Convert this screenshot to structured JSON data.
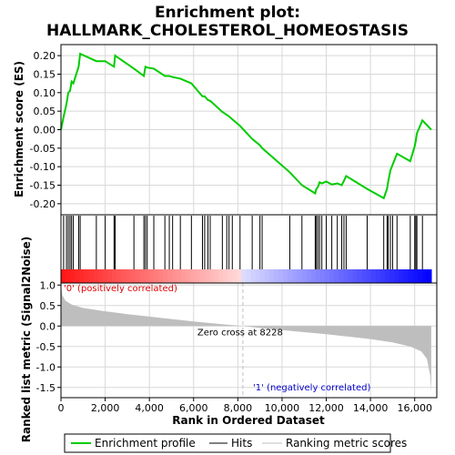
{
  "chart_data": {
    "type": "line",
    "title_line1": "Enrichment plot:",
    "title_line2": "HALLMARK_CHOLESTEROL_HOMEOSTASIS",
    "es_ylabel": "Enrichment score (ES)",
    "metric_ylabel": "Ranked list metric (Signal2Noise)",
    "xlabel": "Rank in Ordered Dataset",
    "xlim": [
      0,
      17000
    ],
    "x_ticks": [
      0,
      2000,
      4000,
      6000,
      8000,
      10000,
      12000,
      14000,
      16000
    ],
    "x_tick_labels": [
      "0",
      "2,000",
      "4,000",
      "6,000",
      "8,000",
      "10,000",
      "12,000",
      "14,000",
      "16,000"
    ],
    "es_ylim": [
      -0.22,
      0.22
    ],
    "es_ticks": [
      -0.2,
      -0.15,
      -0.1,
      -0.05,
      0.0,
      0.05,
      0.1,
      0.15,
      0.2
    ],
    "es_tick_labels": [
      "-0.20",
      "-0.15",
      "-0.10",
      "-0.05",
      "0.00",
      "0.05",
      "0.10",
      "0.15",
      "0.20"
    ],
    "metric_ylim": [
      -1.75,
      1.05
    ],
    "metric_ticks": [
      -1.5,
      -1.0,
      -0.5,
      0.0,
      0.5,
      1.0
    ],
    "metric_tick_labels": [
      "-1.5",
      "-1.0",
      "-0.5",
      "0.0",
      "0.5",
      "1.0"
    ],
    "zero_cross_label": "Zero cross at 8228",
    "zero_cross": 8228,
    "pos_label": "'0' (positively correlated)",
    "neg_label": "'1' (negatively correlated)",
    "legend": [
      "Enrichment profile",
      "Hits",
      "Ranking metric scores"
    ],
    "colors": {
      "es_line": "#00cc00",
      "hit": "#000000",
      "metric_fill": "#bebebe",
      "pos_label": "#e00000",
      "neg_label": "#0000cc",
      "zero_line": "#bebebe",
      "grid": "#d8d8d8"
    },
    "hits": [
      120,
      250,
      330,
      410,
      480,
      560,
      800,
      870,
      1600,
      2000,
      2400,
      2450,
      3300,
      3750,
      3820,
      3900,
      4200,
      4700,
      4900,
      5050,
      5400,
      5900,
      6400,
      6500,
      6650,
      6750,
      7300,
      7500,
      7600,
      7750,
      8100,
      8650,
      9000,
      9100,
      10350,
      10900,
      11500,
      11550,
      11620,
      11700,
      11800,
      12000,
      12250,
      12500,
      12700,
      12800,
      12900,
      13850,
      14600,
      14750,
      14800,
      14900,
      15000,
      15200,
      15800,
      16000,
      16050,
      16100,
      16350
    ],
    "es_x": [
      0,
      120,
      250,
      330,
      410,
      480,
      560,
      800,
      870,
      1600,
      2000,
      2400,
      2450,
      3300,
      3750,
      3820,
      3900,
      4200,
      4700,
      4900,
      5050,
      5400,
      5900,
      6400,
      6500,
      6650,
      6750,
      7300,
      7500,
      7600,
      7750,
      8100,
      8650,
      9000,
      9100,
      10350,
      10900,
      11500,
      11550,
      11620,
      11700,
      11800,
      12000,
      12250,
      12500,
      12700,
      12800,
      12900,
      13850,
      14600,
      14750,
      14800,
      14900,
      15000,
      15200,
      15800,
      16000,
      16050,
      16100,
      16350,
      16750
    ],
    "es_y": [
      0.0,
      0.035,
      0.07,
      0.1,
      0.105,
      0.13,
      0.125,
      0.17,
      0.205,
      0.185,
      0.185,
      0.17,
      0.2,
      0.165,
      0.145,
      0.17,
      0.168,
      0.165,
      0.145,
      0.145,
      0.142,
      0.138,
      0.125,
      0.09,
      0.09,
      0.08,
      0.078,
      0.048,
      0.04,
      0.036,
      0.028,
      0.01,
      -0.025,
      -0.042,
      -0.05,
      -0.115,
      -0.15,
      -0.172,
      -0.16,
      -0.155,
      -0.142,
      -0.145,
      -0.14,
      -0.148,
      -0.145,
      -0.15,
      -0.138,
      -0.125,
      -0.16,
      -0.185,
      -0.16,
      -0.14,
      -0.11,
      -0.095,
      -0.065,
      -0.085,
      -0.045,
      -0.03,
      -0.01,
      0.025,
      0.0
    ],
    "metric_x": [
      0,
      60,
      200,
      500,
      1000,
      2000,
      3000,
      4000,
      5000,
      6000,
      7000,
      8228,
      9000,
      10000,
      11000,
      12000,
      13000,
      14000,
      15000,
      15800,
      16300,
      16550,
      16700,
      16750
    ],
    "metric_y": [
      1.0,
      0.75,
      0.62,
      0.52,
      0.44,
      0.36,
      0.29,
      0.23,
      0.17,
      0.11,
      0.06,
      0.0,
      -0.05,
      -0.1,
      -0.15,
      -0.2,
      -0.26,
      -0.32,
      -0.4,
      -0.5,
      -0.62,
      -0.8,
      -1.2,
      -1.6
    ]
  }
}
